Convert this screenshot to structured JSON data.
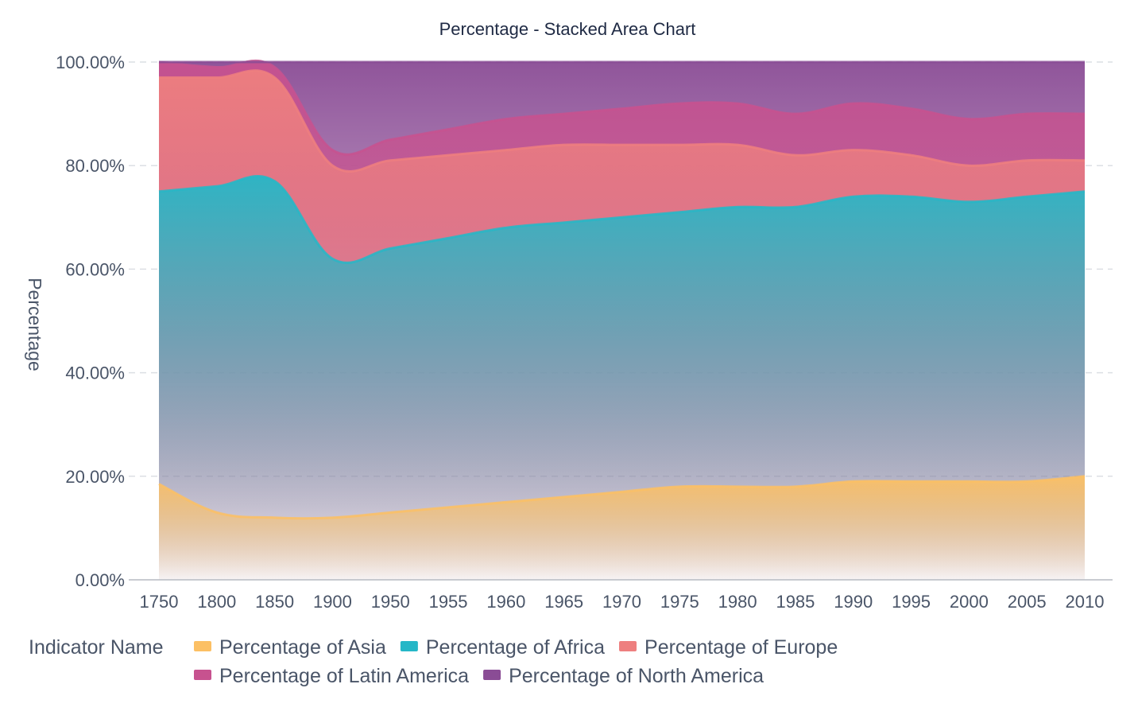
{
  "chart_data": {
    "type": "area",
    "stacked": true,
    "title": "Percentage - Stacked Area Chart",
    "xlabel": "",
    "ylabel": "Percentage",
    "ylim": [
      0,
      100
    ],
    "y_ticks": [
      "0.00%",
      "20.00%",
      "40.00%",
      "60.00%",
      "80.00%",
      "100.00%"
    ],
    "y_tick_values": [
      0,
      20,
      40,
      60,
      80,
      100
    ],
    "categories": [
      "1750",
      "1800",
      "1850",
      "1900",
      "1950",
      "1955",
      "1960",
      "1965",
      "1970",
      "1975",
      "1980",
      "1985",
      "1990",
      "1995",
      "2000",
      "2005",
      "2010"
    ],
    "grid": true,
    "legend_title": "Indicator Name",
    "legend_position": "bottom-left",
    "series": [
      {
        "name": "Percentage of Asia",
        "color": "#fcc064",
        "values": [
          18.5,
          13,
          12,
          12,
          13,
          14,
          15,
          16,
          17,
          18,
          18,
          18,
          19,
          19,
          19,
          19,
          20
        ]
      },
      {
        "name": "Percentage of Africa",
        "color": "#26b7c7",
        "values": [
          56.5,
          63,
          65,
          50,
          51,
          52,
          53,
          53,
          53,
          53,
          54,
          54,
          55,
          55,
          54,
          55,
          55
        ]
      },
      {
        "name": "Percentage of Europe",
        "color": "#ee7f7f",
        "values": [
          22,
          21,
          20,
          18,
          17,
          16,
          15,
          15,
          14,
          13,
          12,
          10,
          9,
          8,
          7,
          7,
          6
        ]
      },
      {
        "name": "Percentage of Latin America",
        "color": "#c7528f",
        "values": [
          3,
          2,
          2,
          3,
          4,
          5,
          6,
          6,
          7,
          8,
          8,
          8,
          9,
          9,
          9,
          9,
          9
        ]
      },
      {
        "name": "Percentage of North America",
        "color": "#8a4c95",
        "values": [
          0,
          1,
          1,
          17,
          15,
          13,
          11,
          10,
          9,
          8,
          8,
          10,
          8,
          9,
          11,
          10,
          10
        ]
      }
    ]
  }
}
